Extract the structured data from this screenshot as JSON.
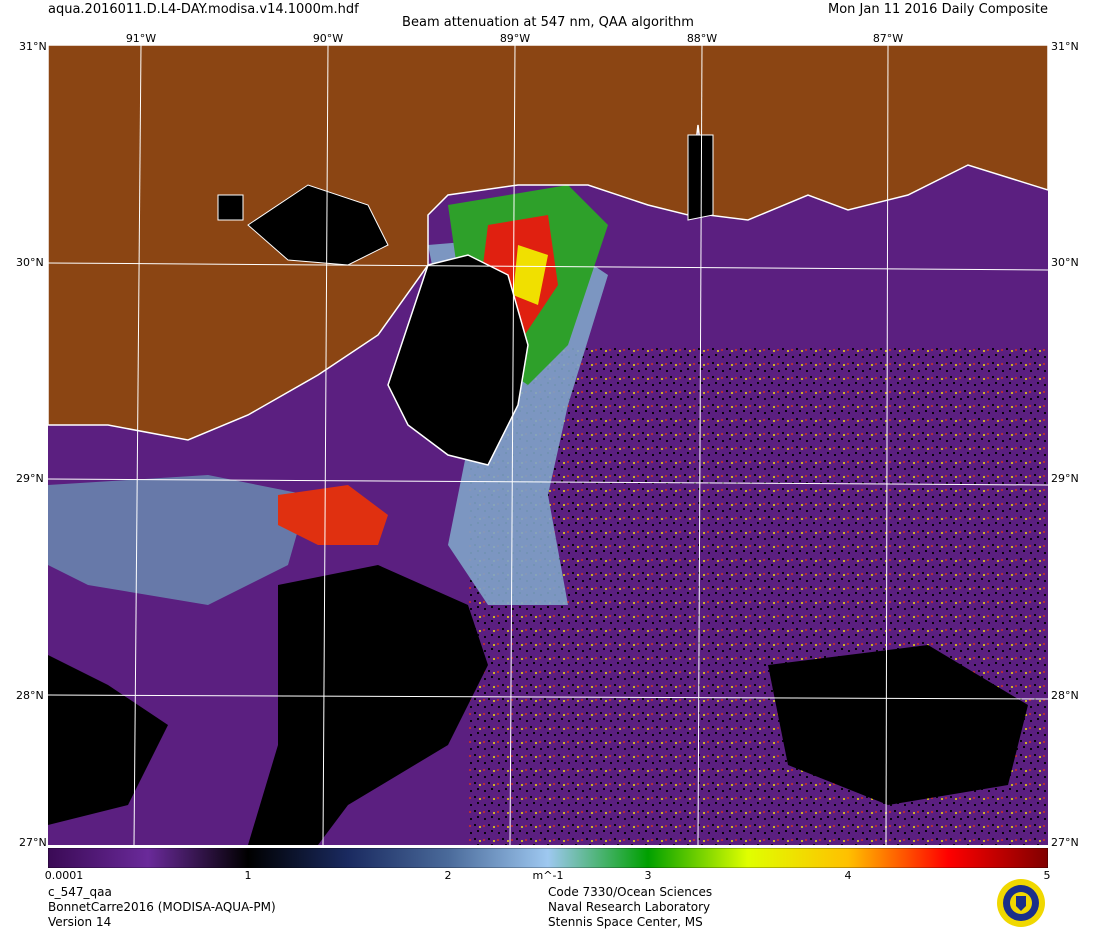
{
  "header": {
    "filename": "aqua.2016011.D.L4-DAY.modisa.v14.1000m.hdf",
    "title": "Beam attenuation at 547 nm, QAA algorithm",
    "date": "Mon Jan 11 2016 Daily Composite"
  },
  "map": {
    "lat_labels": [
      "31°N",
      "30°N",
      "29°N",
      "28°N"
    ],
    "lon_labels": [
      "91°W",
      "90°W",
      "89°W",
      "88°W",
      "87°W"
    ],
    "corner_labels": {
      "top_left": "31°N",
      "top_right": "31°N",
      "bottom_left": "27°N",
      "bottom_right": "27°N"
    },
    "land_color": "#8b4513",
    "water_color": "#5b1f80",
    "nodata_color": "#000000",
    "coast_color": "#ffffff"
  },
  "colorbar": {
    "unit": "m^-1",
    "tick_labels": [
      "0.0001",
      "1",
      "2",
      "3",
      "4",
      "5"
    ],
    "tick_values": [
      0.0001,
      1,
      2,
      3,
      4,
      5
    ],
    "range": [
      0.0001,
      5
    ],
    "colors": [
      "#3a0a55",
      "#6a2a9a",
      "#000000",
      "#1a2a60",
      "#4a6a9a",
      "#9ec8f0",
      "#00a000",
      "#e0ff00",
      "#ffc000",
      "#ff0000",
      "#800000"
    ]
  },
  "footer": {
    "left": [
      "c_547_qaa",
      "BonnetCarre2016 (MODISA-AQUA-PM)",
      "Version 14"
    ],
    "right": [
      "Code 7330/Ocean Sciences",
      "Naval Research Laboratory",
      "Stennis Space Center, MS"
    ]
  }
}
